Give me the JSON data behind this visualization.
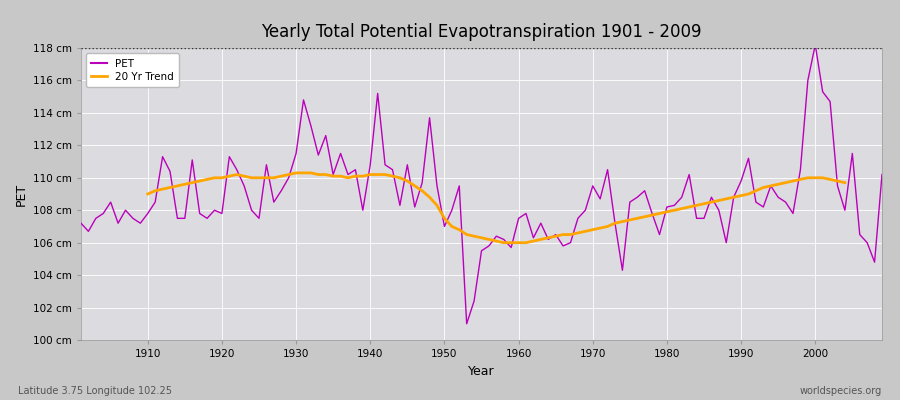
{
  "title": "Yearly Total Potential Evapotranspiration 1901 - 2009",
  "ylabel": "PET",
  "xlabel": "Year",
  "subtitle_left": "Latitude 3.75 Longitude 102.25",
  "subtitle_right": "worldspecies.org",
  "pet_color": "#bb00bb",
  "trend_color": "#ffa500",
  "fig_bg_color": "#c8c8c8",
  "plot_bg_color": "#dcdce0",
  "ylim": [
    100,
    118
  ],
  "xlim": [
    1901,
    2009
  ],
  "yticks": [
    100,
    102,
    104,
    106,
    108,
    110,
    112,
    114,
    116,
    118
  ],
  "xticks": [
    1910,
    1920,
    1930,
    1940,
    1950,
    1960,
    1970,
    1980,
    1990,
    2000
  ],
  "hline_y": 118,
  "legend_labels": [
    "PET",
    "20 Yr Trend"
  ],
  "years": [
    1901,
    1902,
    1903,
    1904,
    1905,
    1906,
    1907,
    1908,
    1909,
    1910,
    1911,
    1912,
    1913,
    1914,
    1915,
    1916,
    1917,
    1918,
    1919,
    1920,
    1921,
    1922,
    1923,
    1924,
    1925,
    1926,
    1927,
    1928,
    1929,
    1930,
    1931,
    1932,
    1933,
    1934,
    1935,
    1936,
    1937,
    1938,
    1939,
    1940,
    1941,
    1942,
    1943,
    1944,
    1945,
    1946,
    1947,
    1948,
    1949,
    1950,
    1951,
    1952,
    1953,
    1954,
    1955,
    1956,
    1957,
    1958,
    1959,
    1960,
    1961,
    1962,
    1963,
    1964,
    1965,
    1966,
    1967,
    1968,
    1969,
    1970,
    1971,
    1972,
    1973,
    1974,
    1975,
    1976,
    1977,
    1978,
    1979,
    1980,
    1981,
    1982,
    1983,
    1984,
    1985,
    1986,
    1987,
    1988,
    1989,
    1990,
    1991,
    1992,
    1993,
    1994,
    1995,
    1996,
    1997,
    1998,
    1999,
    2000,
    2001,
    2002,
    2003,
    2004,
    2005,
    2006,
    2007,
    2008,
    2009
  ],
  "pet": [
    107.2,
    106.7,
    107.5,
    107.8,
    108.5,
    107.2,
    108.0,
    107.5,
    107.2,
    107.8,
    108.5,
    111.3,
    110.4,
    107.5,
    107.5,
    111.1,
    107.8,
    107.5,
    108.0,
    107.8,
    111.3,
    110.5,
    109.5,
    108.0,
    107.5,
    110.8,
    108.5,
    109.2,
    110.0,
    111.5,
    114.8,
    113.2,
    111.4,
    112.6,
    110.2,
    111.5,
    110.2,
    110.5,
    108.0,
    110.8,
    115.2,
    110.8,
    110.5,
    108.3,
    110.8,
    108.2,
    109.7,
    113.7,
    109.5,
    107.0,
    108.0,
    109.5,
    101.0,
    102.4,
    105.5,
    105.8,
    106.4,
    106.2,
    105.7,
    107.5,
    107.8,
    106.3,
    107.2,
    106.2,
    106.5,
    105.8,
    106.0,
    107.5,
    108.0,
    109.5,
    108.7,
    110.5,
    107.2,
    104.3,
    108.5,
    108.8,
    109.2,
    107.8,
    106.5,
    108.2,
    108.3,
    108.8,
    110.2,
    107.5,
    107.5,
    108.8,
    108.0,
    106.0,
    108.8,
    109.8,
    111.2,
    108.5,
    108.2,
    109.5,
    108.8,
    108.5,
    107.8,
    110.5,
    116.0,
    118.2,
    115.3,
    114.7,
    109.5,
    108.0,
    111.5,
    106.5,
    106.0,
    104.8,
    110.2
  ],
  "trend": [
    null,
    null,
    null,
    null,
    null,
    null,
    null,
    null,
    null,
    109.0,
    109.2,
    109.3,
    109.4,
    109.5,
    109.6,
    109.7,
    109.8,
    109.9,
    110.0,
    110.0,
    110.1,
    110.2,
    110.1,
    110.0,
    110.0,
    110.0,
    110.0,
    110.1,
    110.2,
    110.3,
    110.3,
    110.3,
    110.2,
    110.2,
    110.1,
    110.1,
    110.0,
    110.1,
    110.1,
    110.2,
    110.2,
    110.2,
    110.1,
    110.0,
    109.8,
    109.5,
    109.2,
    108.8,
    108.3,
    107.5,
    107.0,
    106.8,
    106.5,
    106.4,
    106.3,
    106.2,
    106.1,
    106.0,
    106.0,
    106.0,
    106.0,
    106.1,
    106.2,
    106.3,
    106.4,
    106.5,
    106.5,
    106.6,
    106.7,
    106.8,
    106.9,
    107.0,
    107.2,
    107.3,
    107.4,
    107.5,
    107.6,
    107.7,
    107.8,
    107.9,
    108.0,
    108.1,
    108.2,
    108.3,
    108.4,
    108.5,
    108.6,
    108.7,
    108.8,
    108.9,
    109.0,
    109.2,
    109.4,
    109.5,
    109.6,
    109.7,
    109.8,
    109.9,
    110.0,
    110.0,
    110.0,
    109.9,
    109.8,
    109.7,
    null,
    null,
    null,
    null,
    null
  ]
}
